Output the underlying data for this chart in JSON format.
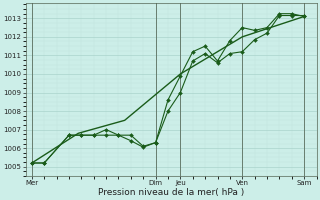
{
  "xlabel": "Pression niveau de la mer( hPa )",
  "ylim": [
    1004.5,
    1013.8
  ],
  "yticks": [
    1005,
    1006,
    1007,
    1008,
    1009,
    1010,
    1011,
    1012,
    1013
  ],
  "bg_color": "#cceee8",
  "grid_major_color": "#aad4cc",
  "grid_minor_color": "#c0e4de",
  "line_color": "#1a5c1a",
  "vline_color": "#556655",
  "day_labels": [
    "Mer",
    "Dim",
    "Jeu",
    "Ven",
    "Sam"
  ],
  "day_positions": [
    0,
    4.0,
    4.8,
    6.8,
    8.8
  ],
  "xlim": [
    -0.2,
    9.2
  ],
  "vline_positions": [
    0,
    4.0,
    4.8,
    6.8,
    8.8
  ],
  "line1_x": [
    0,
    0.4,
    1.2,
    1.6,
    2.0,
    2.4,
    2.8,
    3.2,
    3.6,
    4.0,
    4.4,
    4.8,
    5.2,
    5.6,
    6.0,
    6.4,
    6.8,
    7.2,
    7.6,
    8.0,
    8.4,
    8.8
  ],
  "line1_y": [
    1005.2,
    1005.2,
    1006.7,
    1006.7,
    1006.7,
    1006.7,
    1006.7,
    1006.7,
    1006.1,
    1006.3,
    1008.0,
    1009.0,
    1010.7,
    1011.1,
    1010.6,
    1011.1,
    1011.2,
    1011.85,
    1012.2,
    1013.15,
    1013.15,
    1013.15
  ],
  "line2_x": [
    0,
    0.4,
    1.2,
    1.6,
    2.0,
    2.4,
    2.8,
    3.2,
    3.6,
    4.0,
    4.4,
    4.8,
    5.2,
    5.6,
    6.0,
    6.4,
    6.8,
    7.2,
    7.6,
    8.0,
    8.4,
    8.8
  ],
  "line2_y": [
    1005.2,
    1005.2,
    1006.7,
    1006.7,
    1006.7,
    1007.0,
    1006.7,
    1006.4,
    1006.05,
    1006.3,
    1008.6,
    1009.9,
    1011.2,
    1011.5,
    1010.7,
    1011.8,
    1012.5,
    1012.35,
    1012.5,
    1013.25,
    1013.25,
    1013.1
  ],
  "line3_x": [
    0,
    1.5,
    3.0,
    4.8,
    6.8,
    8.8
  ],
  "line3_y": [
    1005.2,
    1006.8,
    1007.5,
    1010.0,
    1012.0,
    1013.1
  ]
}
